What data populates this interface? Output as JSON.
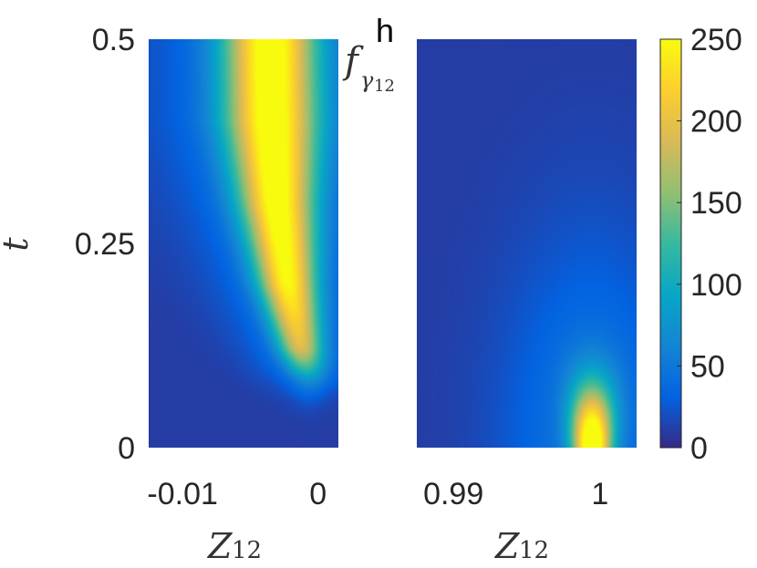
{
  "figure": {
    "panel_label": "h",
    "function_label": {
      "base": "f",
      "subscript_symbol": "γ",
      "subscript_index": "12"
    }
  },
  "chart_data": [
    {
      "type": "heatmap",
      "panel": "left",
      "xlabel": {
        "base": "Z",
        "sub": "12"
      },
      "ylabel": "t",
      "xlim": [
        -0.0125,
        0.0015
      ],
      "ylim": [
        0,
        0.5
      ],
      "xticks": [
        -0.01,
        0
      ],
      "xtick_labels": [
        "-0.01",
        "0"
      ],
      "yticks": [
        0,
        0.25,
        0.5
      ],
      "ytick_labels": [
        "0",
        "0.25",
        "0.5"
      ],
      "description_of_field": "density peaks ~220 near Z12=-0.003 for t>0.15; spreads and narrows toward Z12≈-0.0005 around t≈0.1; low below t≈0.06",
      "ridge": {
        "t": [
          0.08,
          0.12,
          0.2,
          0.3,
          0.4,
          0.5
        ],
        "z_center": [
          -0.0006,
          -0.0012,
          -0.0022,
          -0.003,
          -0.0034,
          -0.0035
        ],
        "peak": [
          60,
          150,
          205,
          220,
          225,
          225
        ]
      }
    },
    {
      "type": "heatmap",
      "panel": "right",
      "xlabel": {
        "base": "Z",
        "sub": "12"
      },
      "xlim": [
        0.9875,
        1.0025
      ],
      "ylim": [
        0,
        0.5
      ],
      "xticks": [
        0.99,
        1
      ],
      "xtick_labels": [
        "0.99",
        "1"
      ],
      "description_of_field": "mostly ~10; hot spot ~250 at Z12≈0.9995, t≈0 decaying upward by t≈0.1",
      "hotspot": {
        "z": 0.9995,
        "t": 0.0,
        "peak": 250
      }
    }
  ],
  "colorbar": {
    "colormap": "parula",
    "range": [
      0,
      250
    ],
    "ticks": [
      0,
      50,
      100,
      150,
      200,
      250
    ],
    "tick_labels": [
      "0",
      "50",
      "100",
      "150",
      "200",
      "250"
    ],
    "colors": [
      "#352a87",
      "#0363e1",
      "#1485d4",
      "#06a7c6",
      "#38b99e",
      "#92bf73",
      "#d9ba56",
      "#fcce2e",
      "#f9fb0e"
    ]
  }
}
